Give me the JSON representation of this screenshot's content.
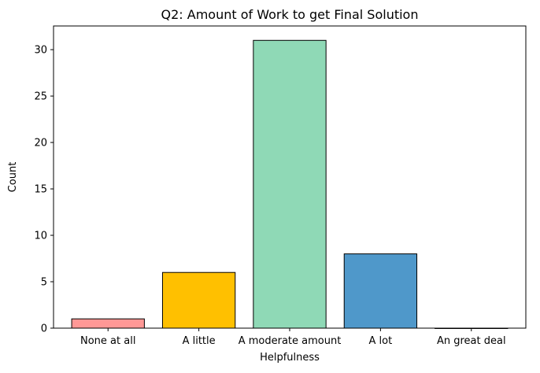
{
  "chart_data": {
    "type": "bar",
    "title": "Q2: Amount of Work to get Final Solution",
    "xlabel": "Helpfulness",
    "ylabel": "Count",
    "categories": [
      "None at all",
      "A little",
      "A moderate amount",
      "A lot",
      "An great deal"
    ],
    "values": [
      1,
      6,
      31,
      8,
      0
    ],
    "colors": [
      "#ff9896",
      "#ffc000",
      "#8fd9b6",
      "#4f98ca",
      "#f5f5f5"
    ],
    "edge_color": "#000000",
    "ylim": [
      0,
      32.55
    ],
    "yticks": [
      0,
      5,
      10,
      15,
      20,
      25,
      30
    ],
    "grid": false,
    "legend": "none"
  }
}
